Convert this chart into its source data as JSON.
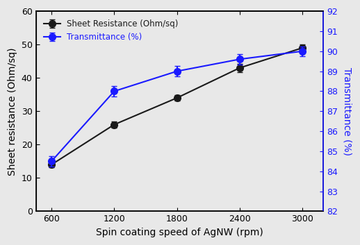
{
  "x": [
    600,
    1200,
    1800,
    2400,
    3000
  ],
  "sheet_resistance": [
    14.0,
    26.0,
    34.0,
    43.0,
    49.0
  ],
  "sheet_resistance_err": [
    0.7,
    1.0,
    0.8,
    1.2,
    1.0
  ],
  "transmittance": [
    84.5,
    88.0,
    89.0,
    89.6,
    90.0
  ],
  "transmittance_err": [
    0.25,
    0.25,
    0.25,
    0.25,
    0.25
  ],
  "sr_color": "#1a1a1a",
  "trans_color": "#1a1aff",
  "xlabel": "Spin coating speed of AgNW (rpm)",
  "ylabel_left": "Sheet resistance (Ohm/sq)",
  "ylabel_right": "Transmittance (%)",
  "legend_sr": "Sheet Resistance (Ohm/sq)",
  "legend_trans": "Transmittance (%)",
  "ylim_left": [
    0,
    60
  ],
  "ylim_right": [
    82,
    92
  ],
  "yticks_left": [
    0,
    10,
    20,
    30,
    40,
    50,
    60
  ],
  "yticks_right": [
    82,
    83,
    84,
    85,
    86,
    87,
    88,
    89,
    90,
    91,
    92
  ],
  "xticks": [
    600,
    1200,
    1800,
    2400,
    3000
  ],
  "background_color": "#e8e8e8",
  "marker_size": 7,
  "linewidth": 1.5,
  "capsize": 3
}
